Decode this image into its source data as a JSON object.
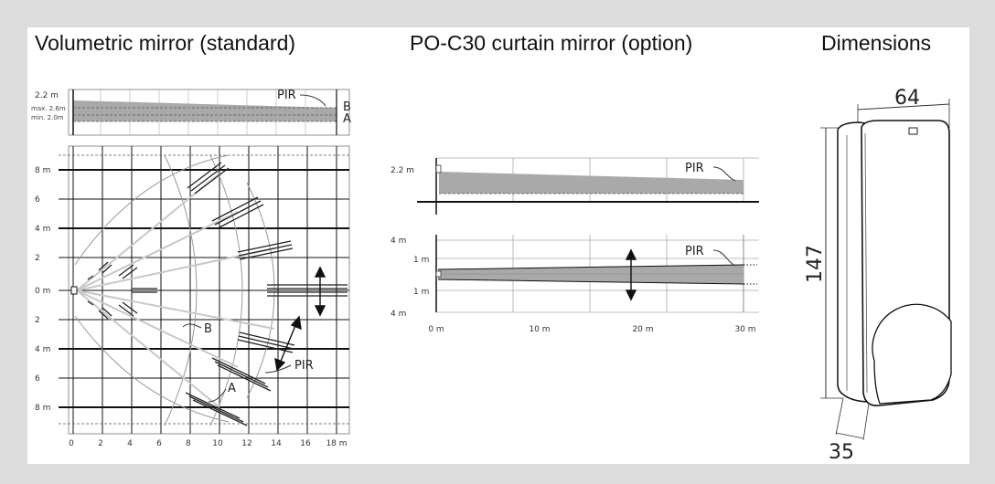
{
  "panels": {
    "volumetric": {
      "title": "Volumetric mirror (standard)",
      "profile": {
        "height_label": "2.2 m",
        "max_label": "max. 2.6m",
        "min_label": "min. 2.0m",
        "pir_label": "PIR",
        "b_label": "B",
        "a_label": "A"
      },
      "plan": {
        "y_labels": [
          "8 m",
          "6",
          "4 m",
          "2",
          "0 m",
          "2",
          "4 m",
          "6",
          "8 m"
        ],
        "x_labels": [
          "0",
          "2",
          "4",
          "6",
          "8",
          "10",
          "12",
          "14",
          "16",
          "18 m"
        ],
        "b_label": "B",
        "a_label": "A",
        "pir_label": "PIR"
      }
    },
    "curtain": {
      "title": "PO-C30 curtain mirror (option)",
      "side": {
        "height_label": "2.2 m",
        "pir_label": "PIR"
      },
      "top": {
        "y_labels": [
          "4 m",
          "1 m",
          "1 m",
          "4 m"
        ],
        "x_labels": [
          "0 m",
          "10 m",
          "20 m",
          "30 m"
        ],
        "pir_label": "PIR"
      }
    },
    "dimensions": {
      "title": "Dimensions",
      "width_label": "64",
      "height_label": "147",
      "depth_label": "35"
    }
  },
  "colors": {
    "background": "#dcdcdc",
    "panel": "#ffffff",
    "zone_fill": "#a9a9a9",
    "line": "#111111"
  }
}
